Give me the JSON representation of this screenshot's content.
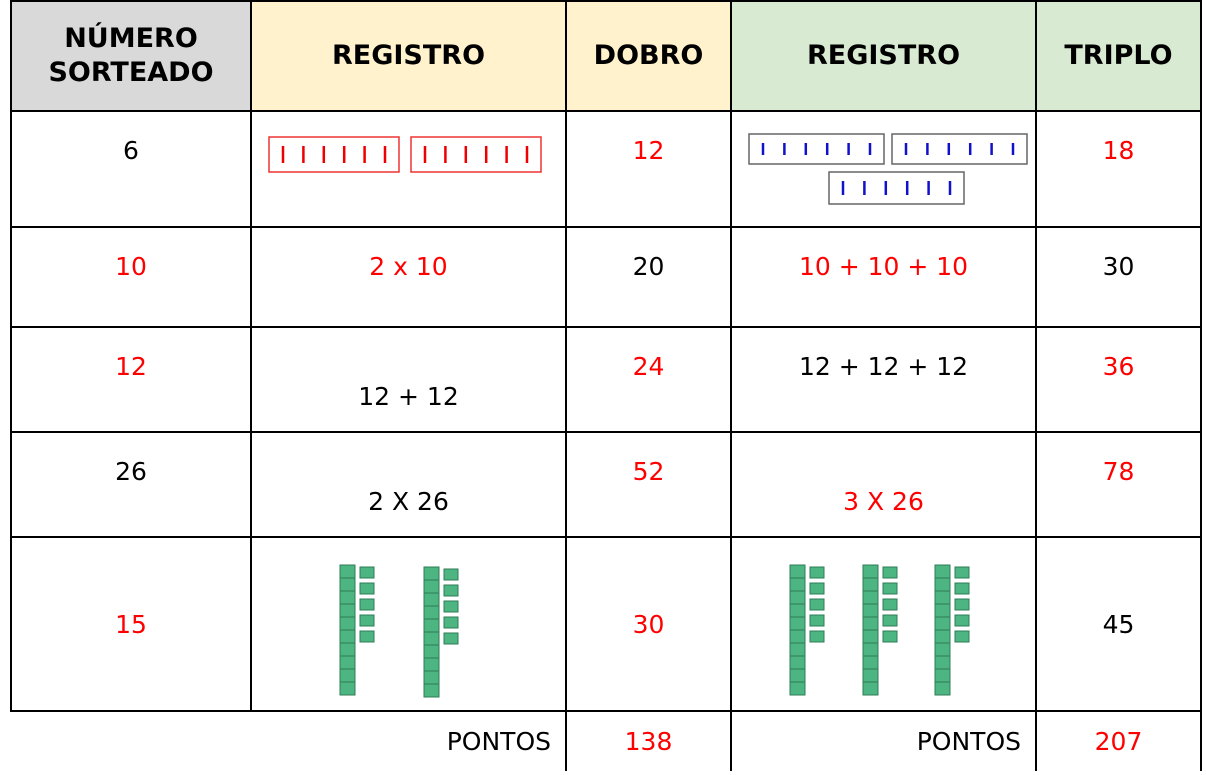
{
  "table": {
    "headers": [
      "NÚMERO SORTEADO",
      "REGISTRO",
      "DOBRO",
      "REGISTRO",
      "TRIPLO"
    ],
    "rows": [
      {
        "number": "6",
        "double": "12",
        "triple": "18"
      },
      {
        "number": "10",
        "double_record": "2 x 10",
        "double": "20",
        "triple_record": "10 + 10 + 10",
        "triple": "30"
      },
      {
        "number": "12",
        "double_record": "12 + 12",
        "double": "24",
        "triple_record": "12 + 12 + 12",
        "triple": "36"
      },
      {
        "number": "26",
        "double_record": "2 X 26",
        "double": "52",
        "triple_record": "3 X 26",
        "triple": "78"
      },
      {
        "number": "15",
        "double": "30",
        "triple": "45"
      }
    ],
    "footer": {
      "double_label": "PONTOS",
      "double_total": "138",
      "triple_label": "PONTOS",
      "triple_total": "207"
    }
  }
}
